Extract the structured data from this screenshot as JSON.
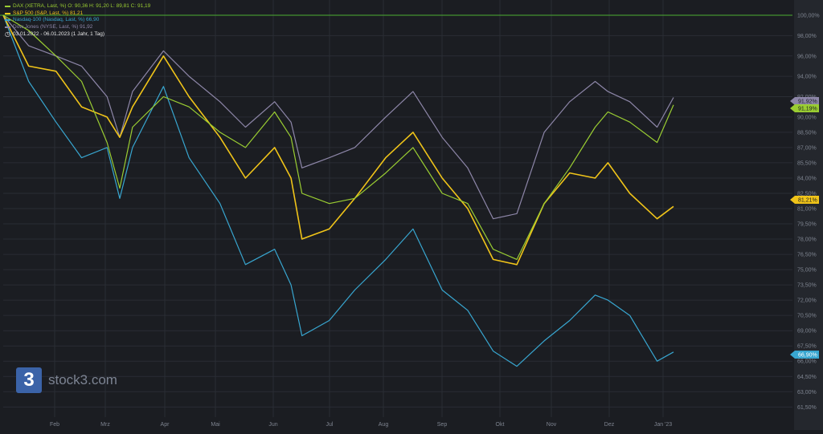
{
  "legend": [
    {
      "text": "DAX (XETRA, Last, %)  O: 90,36  H: 91,20  L: 89,81  C: 91,19",
      "color": "#9acd32"
    },
    {
      "text": "S&P 500 (S&P, Last, %)  81,21",
      "color": "#f0c419"
    },
    {
      "text": "Nasdaq-100 (Nasdaq, Last, %)  66,90",
      "color": "#38a6d0"
    },
    {
      "text": "Dow Jones (NYSE, Last, %)  91,92",
      "color": "#8d86a8"
    }
  ],
  "period": "03.01.2022 - 06.01.2023    (1 Jahr, 1 Tag)",
  "logo": {
    "mark": "3",
    "text": "stock3.com"
  },
  "chart_data": {
    "type": "line",
    "ylim": [
      60.5,
      101.5
    ],
    "x_ticks": [
      "Feb",
      "Mrz",
      "Apr",
      "Mai",
      "Jun",
      "Jul",
      "Aug",
      "Sep",
      "Okt",
      "Nov",
      "Dez",
      "Jan '23"
    ],
    "y_ticks": [
      "100,00%",
      "98,00%",
      "96,00%",
      "94,00%",
      "92,00%",
      "90,00%",
      "88,50%",
      "87,00%",
      "85,50%",
      "84,00%",
      "82,50%",
      "81,00%",
      "79,50%",
      "78,00%",
      "76,50%",
      "75,00%",
      "73,50%",
      "72,00%",
      "70,50%",
      "69,00%",
      "67,50%",
      "66,00%",
      "64,50%",
      "63,00%",
      "61,50%"
    ],
    "y_tick_values": [
      100.0,
      98.0,
      96.0,
      94.0,
      92.0,
      90.0,
      88.5,
      87.0,
      85.5,
      84.0,
      82.5,
      81.0,
      79.5,
      78.0,
      76.5,
      75.0,
      73.5,
      72.0,
      70.5,
      69.0,
      67.5,
      66.0,
      64.5,
      63.0,
      61.5
    ],
    "grid": true,
    "reference_line": 100.0,
    "end_labels": [
      {
        "text": "91,92%",
        "value": 91.92,
        "color": "#8d86a8"
      },
      {
        "text": "91,19%",
        "value": 91.19,
        "color": "#9acd32"
      },
      {
        "text": "81,21%",
        "value": 81.21,
        "color": "#f0c419"
      },
      {
        "text": "66,90%",
        "value": 66.9,
        "color": "#38a6d0"
      }
    ],
    "x": [
      "2022-01-03",
      "2022-01-17",
      "2022-02-01",
      "2022-02-15",
      "2022-03-01",
      "2022-03-08",
      "2022-03-15",
      "2022-04-01",
      "2022-04-15",
      "2022-05-02",
      "2022-05-16",
      "2022-06-01",
      "2022-06-10",
      "2022-06-16",
      "2022-07-01",
      "2022-07-15",
      "2022-08-01",
      "2022-08-16",
      "2022-09-01",
      "2022-09-15",
      "2022-09-29",
      "2022-10-12",
      "2022-10-27",
      "2022-11-10",
      "2022-11-24",
      "2022-12-01",
      "2022-12-13",
      "2022-12-28",
      "2023-01-06"
    ],
    "series": [
      {
        "name": "DAX",
        "color": "#9acd32",
        "values": [
          100.0,
          98.5,
          96.0,
          93.5,
          87.5,
          83.0,
          89.0,
          92.0,
          91.0,
          88.5,
          87.0,
          90.5,
          88.0,
          82.5,
          81.5,
          82.0,
          84.5,
          87.0,
          82.5,
          81.5,
          77.0,
          76.0,
          81.5,
          85.0,
          89.0,
          90.5,
          89.5,
          87.5,
          91.19
        ]
      },
      {
        "name": "S&P 500",
        "color": "#f0c419",
        "values": [
          100.0,
          95.0,
          94.5,
          91.0,
          90.0,
          88.0,
          91.0,
          96.0,
          92.0,
          88.0,
          84.0,
          87.0,
          84.0,
          78.0,
          79.0,
          82.0,
          86.0,
          88.5,
          84.0,
          81.0,
          76.0,
          75.5,
          81.5,
          84.5,
          84.0,
          85.5,
          82.5,
          80.0,
          81.21
        ]
      },
      {
        "name": "Nasdaq-100",
        "color": "#38a6d0",
        "values": [
          100.0,
          93.5,
          89.5,
          86.0,
          87.0,
          82.0,
          87.0,
          93.0,
          86.0,
          81.5,
          75.5,
          77.0,
          73.5,
          68.5,
          70.0,
          73.0,
          76.0,
          79.0,
          73.0,
          71.0,
          67.0,
          65.5,
          68.0,
          70.0,
          72.5,
          72.0,
          70.5,
          66.0,
          66.9
        ]
      },
      {
        "name": "Dow Jones",
        "color": "#8d86a8",
        "values": [
          100.0,
          97.0,
          96.0,
          95.0,
          92.0,
          88.0,
          92.5,
          96.5,
          94.0,
          91.5,
          89.0,
          91.5,
          89.5,
          85.0,
          86.0,
          87.0,
          90.0,
          92.5,
          88.0,
          85.0,
          80.0,
          80.5,
          88.5,
          91.5,
          93.5,
          92.5,
          91.5,
          89.0,
          91.92
        ]
      }
    ]
  }
}
